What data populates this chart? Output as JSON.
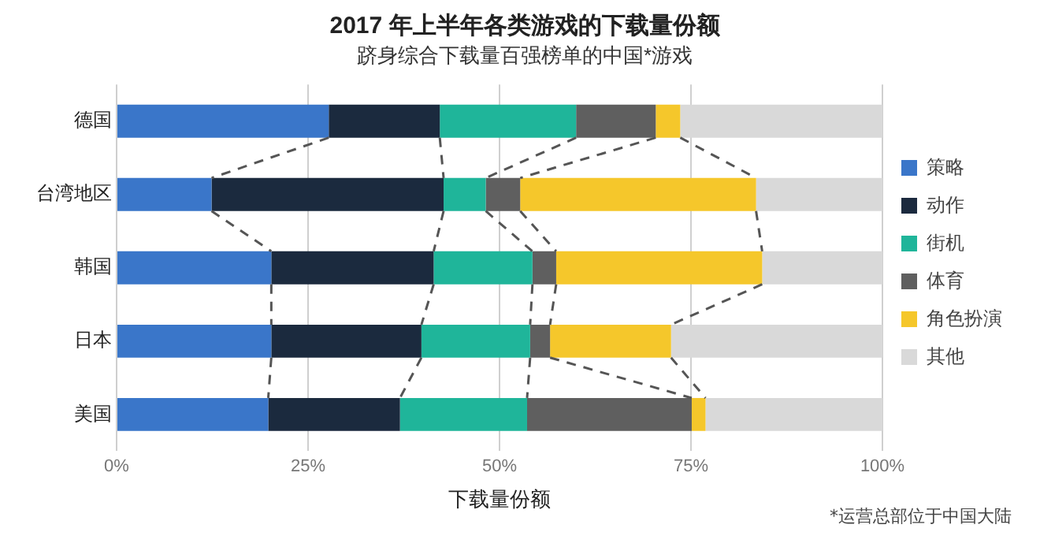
{
  "chart_data": {
    "type": "bar",
    "orientation": "horizontal",
    "stacked": true,
    "title": "2017 年上半年各类游戏的下载量份额",
    "subtitle": "跻身综合下载量百强榜单的中国*游戏",
    "xlabel": "下载量份额",
    "categories": [
      "德国",
      "台湾地区",
      "韩国",
      "日本",
      "美国"
    ],
    "series": [
      {
        "name": "策略",
        "color": "#3a76c9",
        "values": [
          27.7,
          12.4,
          20.2,
          20.2,
          19.8
        ]
      },
      {
        "name": "动作",
        "color": "#1b2a3e",
        "values": [
          14.5,
          30.3,
          21.2,
          19.6,
          17.2
        ]
      },
      {
        "name": "街机",
        "color": "#1fb59a",
        "values": [
          17.8,
          5.5,
          12.9,
          14.2,
          16.6
        ]
      },
      {
        "name": "体育",
        "color": "#5f5f5f",
        "values": [
          10.4,
          4.5,
          3.1,
          2.6,
          21.5
        ]
      },
      {
        "name": "角色扮演",
        "color": "#f5c72b",
        "values": [
          3.2,
          30.8,
          26.9,
          15.8,
          1.8
        ]
      },
      {
        "name": "其他",
        "color": "#d9d9d9",
        "values": [
          26.4,
          16.5,
          15.7,
          27.6,
          23.1
        ]
      }
    ],
    "xlim": [
      0,
      100
    ],
    "xticks": [
      {
        "value": 0,
        "label": "0%"
      },
      {
        "value": 25,
        "label": "25%"
      },
      {
        "value": 50,
        "label": "50%"
      },
      {
        "value": 75,
        "label": "75%"
      },
      {
        "value": 100,
        "label": "100%"
      }
    ],
    "grid": "x",
    "legend": "right",
    "annotations": [
      "*运营总部位于中国大陆"
    ]
  }
}
